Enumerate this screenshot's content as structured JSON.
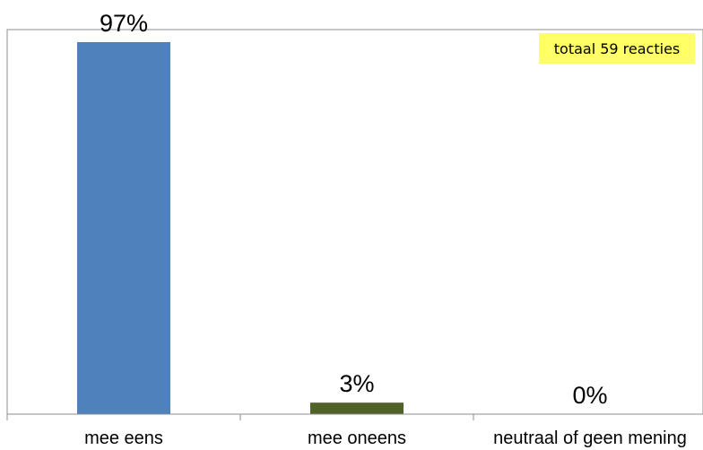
{
  "chart_data": {
    "type": "bar",
    "categories": [
      "mee eens",
      "mee oneens",
      "neutraal of geen mening"
    ],
    "values": [
      97,
      3,
      0
    ],
    "data_labels": [
      "97%",
      "3%",
      "0%"
    ],
    "colors": [
      "#4f81bd",
      "#4f6228",
      "#9bbb59"
    ],
    "ylim": [
      0,
      100
    ],
    "grid": false,
    "legend": "none",
    "annotation": {
      "text": "totaal 59 reacties",
      "background": "#ffff66",
      "placement": "top-right"
    }
  }
}
